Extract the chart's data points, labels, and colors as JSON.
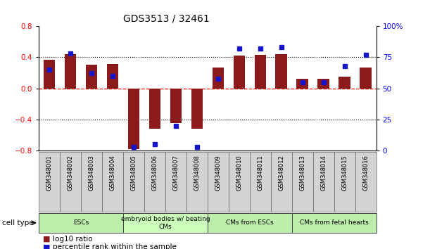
{
  "title": "GDS3513 / 32461",
  "samples": [
    "GSM348001",
    "GSM348002",
    "GSM348003",
    "GSM348004",
    "GSM348005",
    "GSM348006",
    "GSM348007",
    "GSM348008",
    "GSM348009",
    "GSM348010",
    "GSM348011",
    "GSM348012",
    "GSM348013",
    "GSM348014",
    "GSM348015",
    "GSM348016"
  ],
  "log10_ratio": [
    0.37,
    0.44,
    0.3,
    0.31,
    -0.78,
    -0.52,
    -0.45,
    -0.52,
    0.27,
    0.42,
    0.43,
    0.44,
    0.12,
    0.12,
    0.15,
    0.27
  ],
  "percentile_rank": [
    65,
    78,
    62,
    60,
    3,
    5,
    20,
    3,
    58,
    82,
    82,
    83,
    55,
    55,
    68,
    77
  ],
  "ylim_left": [
    -0.8,
    0.8
  ],
  "ylim_right": [
    0,
    100
  ],
  "yticks_left": [
    -0.8,
    -0.4,
    0.0,
    0.4,
    0.8
  ],
  "yticks_right": [
    0,
    25,
    50,
    75,
    100
  ],
  "ytick_labels_right": [
    "0",
    "25",
    "50",
    "75",
    "100%"
  ],
  "hlines_black": [
    0.4,
    -0.4
  ],
  "hline_red": 0.0,
  "bar_color": "#8B1A1A",
  "dot_color": "#1515CC",
  "cell_types": [
    {
      "label": "ESCs",
      "start": 0,
      "end": 3,
      "color": "#BBEEAA"
    },
    {
      "label": "embryoid bodies w/ beating\nCMs",
      "start": 4,
      "end": 7,
      "color": "#CCFFBB"
    },
    {
      "label": "CMs from ESCs",
      "start": 8,
      "end": 11,
      "color": "#BBEEAA"
    },
    {
      "label": "CMs from fetal hearts",
      "start": 12,
      "end": 15,
      "color": "#BBEEAA"
    }
  ],
  "legend_ratio_label": "log10 ratio",
  "legend_pct_label": "percentile rank within the sample",
  "cell_type_label": "cell type"
}
